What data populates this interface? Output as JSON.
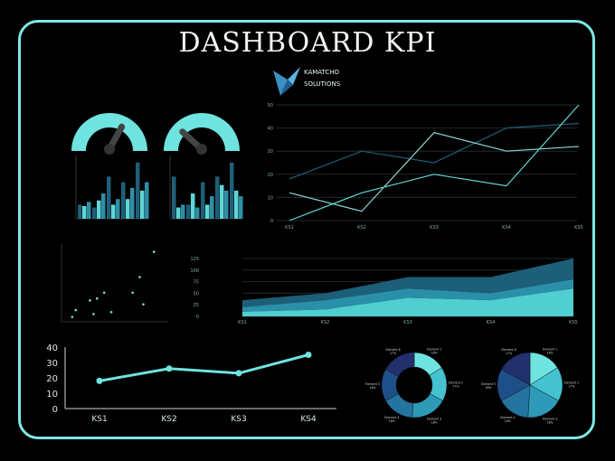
{
  "title": "DASHBOARD KPI",
  "brand": {
    "line1": "KAMATCHO",
    "line2": "SOLUTIONS",
    "logo_icon": "bird-icon"
  },
  "colors": {
    "accent": "#6fe3df",
    "frame": "#7fe8e6",
    "dark_teal": "#1f5f78",
    "mid_teal": "#2e8fa8",
    "light_teal": "#5fd6d6"
  },
  "chart_data": [
    {
      "type": "gauge",
      "panel": "gauge-left",
      "value": 0.65,
      "icon": "speedometer-icon"
    },
    {
      "type": "gauge",
      "panel": "gauge-right",
      "value": 0.25,
      "icon": "speedometer-icon"
    },
    {
      "type": "bar",
      "panel": "bars-left",
      "categories": [
        "",
        "",
        "",
        "",
        ""
      ],
      "series": [
        {
          "values": [
            10,
            8,
            30,
            26,
            40
          ]
        },
        {
          "values": [
            9,
            13,
            10,
            14,
            20
          ]
        },
        {
          "values": [
            12,
            18,
            14,
            22,
            26
          ]
        }
      ],
      "ylim": [
        0,
        45
      ]
    },
    {
      "type": "bar",
      "panel": "bars-right",
      "categories": [
        "",
        "",
        "",
        "",
        ""
      ],
      "series": [
        {
          "values": [
            30,
            10,
            26,
            30,
            40
          ]
        },
        {
          "values": [
            8,
            18,
            10,
            24,
            20
          ]
        },
        {
          "values": [
            10,
            8,
            16,
            20,
            16
          ]
        }
      ],
      "ylim": [
        0,
        45
      ]
    },
    {
      "type": "line",
      "panel": "line-top",
      "categories": [
        "KS1",
        "KS2",
        "KS3",
        "KS4",
        "KS5"
      ],
      "yticks": [
        0,
        10,
        20,
        30,
        40,
        50
      ],
      "ylim": [
        0,
        50
      ],
      "series": [
        {
          "values": [
            18,
            30,
            25,
            40,
            42
          ]
        },
        {
          "values": [
            12,
            4,
            38,
            30,
            32
          ]
        },
        {
          "values": [
            0,
            12,
            20,
            15,
            50
          ]
        }
      ]
    },
    {
      "type": "scatter",
      "panel": "scatter",
      "points": [
        [
          3,
          5
        ],
        [
          4,
          12
        ],
        [
          8,
          22
        ],
        [
          9,
          8
        ],
        [
          10,
          24
        ],
        [
          12,
          30
        ],
        [
          14,
          10
        ],
        [
          20,
          30
        ],
        [
          22,
          46
        ],
        [
          23,
          18
        ],
        [
          26,
          72
        ]
      ],
      "xlim": [
        0,
        30
      ],
      "ylim": [
        0,
        80
      ]
    },
    {
      "type": "area",
      "panel": "area",
      "categories": [
        "KS1",
        "KS2",
        "KS3",
        "KS4",
        "KS5"
      ],
      "yticks": [
        0,
        25,
        50,
        75,
        100,
        125
      ],
      "ylim": [
        0,
        125
      ],
      "series": [
        {
          "values": [
            10,
            15,
            40,
            35,
            60
          ]
        },
        {
          "values": [
            10,
            20,
            20,
            15,
            20
          ]
        },
        {
          "values": [
            15,
            15,
            25,
            35,
            45
          ]
        }
      ]
    },
    {
      "type": "line",
      "panel": "line-bottom",
      "categories": [
        "KS1",
        "KS2",
        "KS3",
        "KS4"
      ],
      "yticks": [
        0,
        10,
        20,
        30,
        40
      ],
      "ylim": [
        0,
        40
      ],
      "series": [
        {
          "values": [
            18,
            26,
            23,
            35
          ]
        }
      ]
    },
    {
      "type": "pie",
      "panel": "donut",
      "donut": true,
      "values": [
        16,
        17,
        18,
        16,
        16,
        17
      ],
      "labels": [
        "Element 1",
        "Element 2",
        "Element 3",
        "Element 4",
        "Element 5",
        "Element 6"
      ],
      "percent_labels": [
        "16%",
        "17%",
        "18%",
        "16%",
        "16%",
        "17%"
      ]
    },
    {
      "type": "pie",
      "panel": "pie",
      "donut": false,
      "values": [
        16,
        17,
        18,
        16,
        16,
        17
      ],
      "labels": [
        "Element 1",
        "Element 2",
        "Element 3",
        "Element 4",
        "Element 5",
        "Element 6"
      ],
      "percent_labels": [
        "16%",
        "17%",
        "18%",
        "16%",
        "16%",
        "17%"
      ]
    }
  ]
}
